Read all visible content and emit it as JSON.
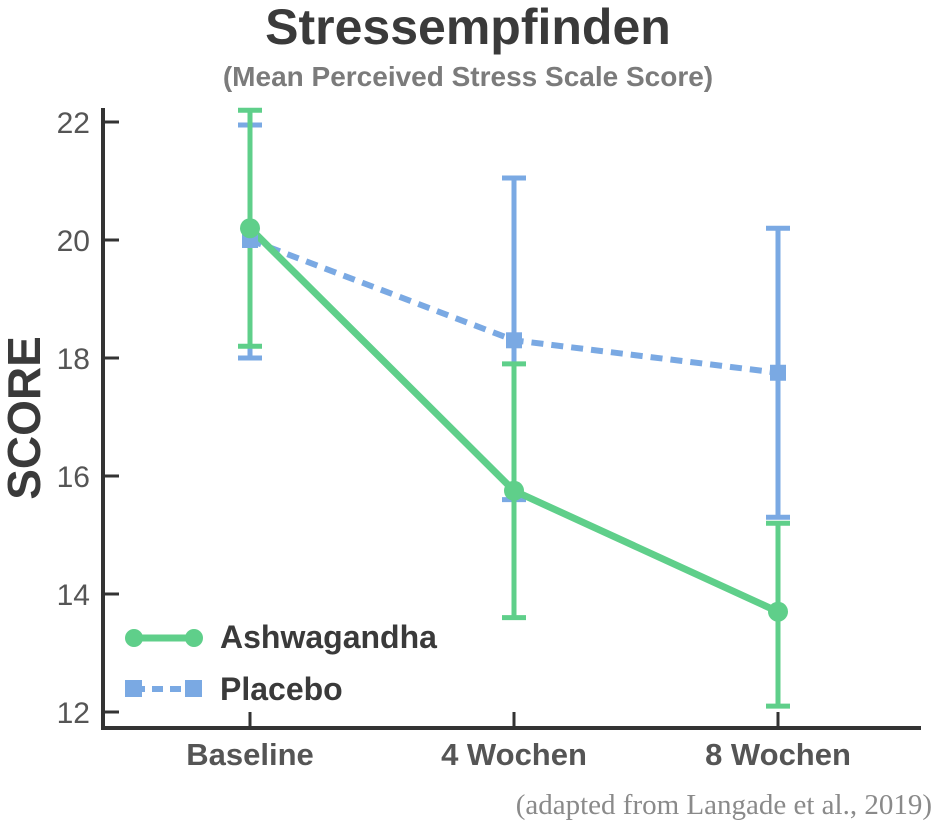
{
  "chart_data": {
    "type": "line",
    "title": "Stressempfinden",
    "subtitle": "(Mean Perceived Stress Scale Score)",
    "ylabel": "SCORE",
    "xlabel": "",
    "categories": [
      "Baseline",
      "4 Wochen",
      "8 Wochen"
    ],
    "ylim": [
      12,
      22
    ],
    "yticks": [
      12,
      14,
      16,
      18,
      20,
      22
    ],
    "grid": false,
    "legend_position": "bottom-left",
    "series": [
      {
        "name": "Ashwagandha",
        "values": [
          20.2,
          15.75,
          13.7
        ],
        "error_low": [
          18.2,
          13.6,
          12.1
        ],
        "error_high": [
          22.2,
          17.9,
          15.2
        ],
        "color": "#5fcf8a",
        "line_style": "solid",
        "marker": "circle"
      },
      {
        "name": "Placebo",
        "values": [
          20.0,
          18.3,
          17.75
        ],
        "error_low": [
          18.0,
          15.6,
          15.3
        ],
        "error_high": [
          21.95,
          21.05,
          20.2
        ],
        "color": "#7aa9e3",
        "line_style": "dashed",
        "marker": "square"
      }
    ],
    "source_note": "(adapted from Langade et al., 2019)"
  }
}
